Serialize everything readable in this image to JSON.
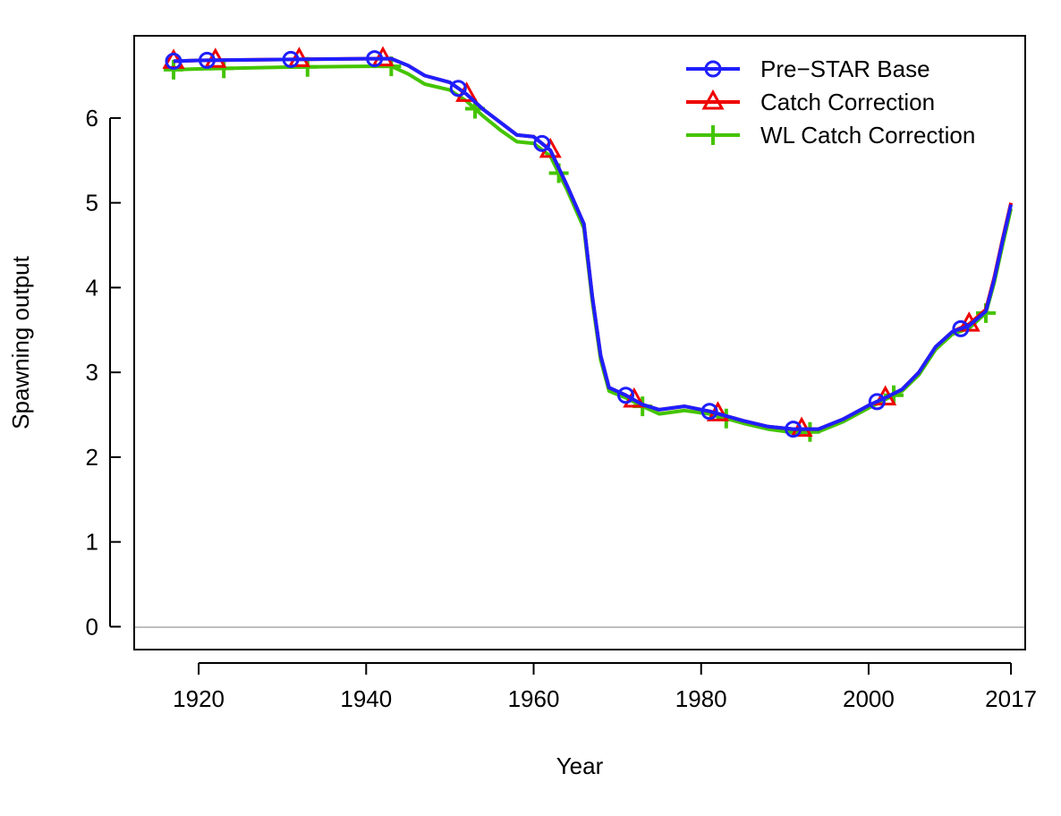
{
  "chart_data": {
    "type": "line",
    "xlabel": "Year",
    "ylabel": "Spawning output",
    "xlim": [
      1912,
      1921.75
    ],
    "ylim": [
      -0.27,
      6.97
    ],
    "x_ticks": [
      {
        "value": 1920,
        "label": "1920"
      },
      {
        "value": 1940,
        "label": "1940"
      },
      {
        "value": 1960,
        "label": "1960"
      },
      {
        "value": 1980,
        "label": "1980"
      },
      {
        "value": 2000,
        "label": "2000"
      },
      {
        "value": 2017,
        "label": "2017"
      }
    ],
    "y_ticks": [
      0,
      1,
      2,
      3,
      4,
      5,
      6
    ],
    "hline": 0,
    "legend_position": "top-right",
    "series": [
      {
        "name": "Pre−STAR Base",
        "color": "#1f1fff",
        "marker": "circle",
        "points": [
          [
            1917,
            6.67
          ],
          [
            1920,
            6.68
          ],
          [
            1930,
            6.69
          ],
          [
            1940,
            6.7
          ],
          [
            1943,
            6.7
          ],
          [
            1945,
            6.62
          ],
          [
            1947,
            6.5
          ],
          [
            1950,
            6.42
          ],
          [
            1952,
            6.28
          ],
          [
            1954,
            6.1
          ],
          [
            1956,
            5.95
          ],
          [
            1958,
            5.8
          ],
          [
            1960,
            5.78
          ],
          [
            1962,
            5.62
          ],
          [
            1964,
            5.2
          ],
          [
            1966,
            4.75
          ],
          [
            1967,
            3.9
          ],
          [
            1968,
            3.2
          ],
          [
            1969,
            2.82
          ],
          [
            1971,
            2.73
          ],
          [
            1973,
            2.62
          ],
          [
            1975,
            2.56
          ],
          [
            1978,
            2.6
          ],
          [
            1981,
            2.54
          ],
          [
            1985,
            2.43
          ],
          [
            1988,
            2.36
          ],
          [
            1991,
            2.33
          ],
          [
            1994,
            2.33
          ],
          [
            1997,
            2.45
          ],
          [
            2000,
            2.61
          ],
          [
            2002,
            2.7
          ],
          [
            2004,
            2.8
          ],
          [
            2006,
            3.0
          ],
          [
            2008,
            3.3
          ],
          [
            2010,
            3.48
          ],
          [
            2012,
            3.55
          ],
          [
            2014,
            3.72
          ],
          [
            2015,
            4.1
          ],
          [
            2016,
            4.55
          ],
          [
            2017,
            4.98
          ]
        ],
        "marker_x": [
          1917,
          1921,
          1931,
          1941,
          1951,
          1961,
          1971,
          1981,
          1991,
          2001,
          2011
        ]
      },
      {
        "name": "Catch Correction",
        "color": "#ee0000",
        "marker": "triangle",
        "points": [
          [
            1917,
            6.67
          ],
          [
            1920,
            6.68
          ],
          [
            1930,
            6.69
          ],
          [
            1940,
            6.7
          ],
          [
            1943,
            6.7
          ],
          [
            1945,
            6.62
          ],
          [
            1947,
            6.5
          ],
          [
            1950,
            6.42
          ],
          [
            1952,
            6.28
          ],
          [
            1954,
            6.1
          ],
          [
            1956,
            5.95
          ],
          [
            1958,
            5.8
          ],
          [
            1960,
            5.78
          ],
          [
            1962,
            5.62
          ],
          [
            1964,
            5.2
          ],
          [
            1966,
            4.75
          ],
          [
            1967,
            3.9
          ],
          [
            1968,
            3.2
          ],
          [
            1969,
            2.82
          ],
          [
            1971,
            2.73
          ],
          [
            1973,
            2.62
          ],
          [
            1975,
            2.56
          ],
          [
            1978,
            2.6
          ],
          [
            1981,
            2.54
          ],
          [
            1985,
            2.43
          ],
          [
            1988,
            2.36
          ],
          [
            1991,
            2.33
          ],
          [
            1994,
            2.33
          ],
          [
            1997,
            2.45
          ],
          [
            2000,
            2.61
          ],
          [
            2002,
            2.7
          ],
          [
            2004,
            2.8
          ],
          [
            2006,
            3.0
          ],
          [
            2008,
            3.3
          ],
          [
            2010,
            3.48
          ],
          [
            2012,
            3.57
          ],
          [
            2014,
            3.74
          ],
          [
            2015,
            4.12
          ],
          [
            2016,
            4.57
          ],
          [
            2017,
            5.0
          ]
        ],
        "marker_x": [
          1917,
          1922,
          1932,
          1942,
          1952,
          1962,
          1972,
          1982,
          1992,
          2002,
          2012
        ]
      },
      {
        "name": "WL Catch Correction",
        "color": "#44c400",
        "marker": "plus",
        "points": [
          [
            1917,
            6.57
          ],
          [
            1920,
            6.58
          ],
          [
            1930,
            6.6
          ],
          [
            1940,
            6.61
          ],
          [
            1943,
            6.61
          ],
          [
            1945,
            6.52
          ],
          [
            1947,
            6.4
          ],
          [
            1950,
            6.33
          ],
          [
            1952,
            6.2
          ],
          [
            1954,
            6.02
          ],
          [
            1956,
            5.86
          ],
          [
            1958,
            5.72
          ],
          [
            1960,
            5.7
          ],
          [
            1962,
            5.55
          ],
          [
            1964,
            5.15
          ],
          [
            1966,
            4.7
          ],
          [
            1967,
            3.85
          ],
          [
            1968,
            3.15
          ],
          [
            1969,
            2.78
          ],
          [
            1971,
            2.7
          ],
          [
            1973,
            2.6
          ],
          [
            1975,
            2.51
          ],
          [
            1978,
            2.55
          ],
          [
            1981,
            2.51
          ],
          [
            1985,
            2.4
          ],
          [
            1988,
            2.33
          ],
          [
            1991,
            2.29
          ],
          [
            1994,
            2.3
          ],
          [
            1997,
            2.42
          ],
          [
            2000,
            2.58
          ],
          [
            2002,
            2.68
          ],
          [
            2004,
            2.78
          ],
          [
            2006,
            2.97
          ],
          [
            2008,
            3.27
          ],
          [
            2010,
            3.45
          ],
          [
            2012,
            3.52
          ],
          [
            2014,
            3.7
          ],
          [
            2015,
            4.06
          ],
          [
            2016,
            4.5
          ],
          [
            2017,
            4.93
          ]
        ],
        "marker_x": [
          1917,
          1923,
          1933,
          1943,
          1953,
          1963,
          1973,
          1983,
          1993,
          2003,
          2014
        ]
      }
    ]
  }
}
